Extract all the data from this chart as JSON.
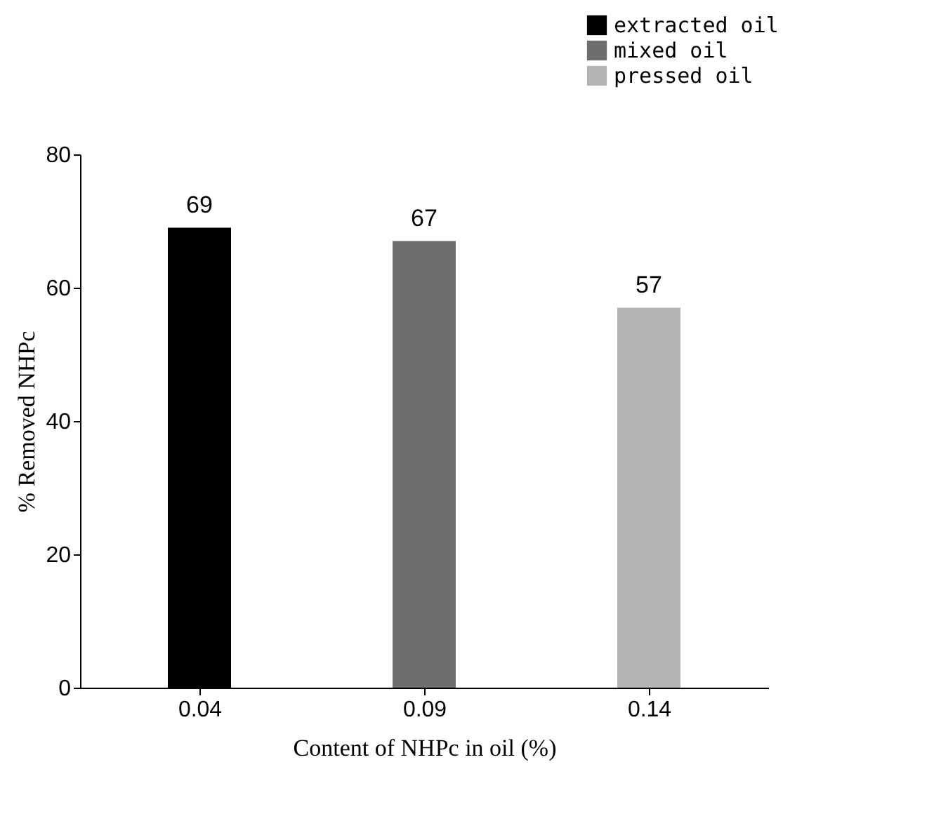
{
  "chart_data": {
    "type": "bar",
    "categories": [
      "0.04",
      "0.09",
      "0.14"
    ],
    "xlabel": "Content of NHPc in oil (%)",
    "ylabel": "% Removed NHPc",
    "series": [
      {
        "name": "extracted oil",
        "color": "#000000",
        "values": [
          69,
          null,
          null
        ]
      },
      {
        "name": "mixed oil",
        "color": "#6e6e6e",
        "values": [
          null,
          67,
          null
        ]
      },
      {
        "name": "pressed oil",
        "color": "#b4b4b4",
        "values": [
          null,
          null,
          57
        ]
      }
    ],
    "ylim": [
      0,
      80
    ],
    "yticks": [
      0,
      20,
      40,
      60,
      80
    ],
    "data_labels": true,
    "legend": "top right",
    "grid": false
  }
}
